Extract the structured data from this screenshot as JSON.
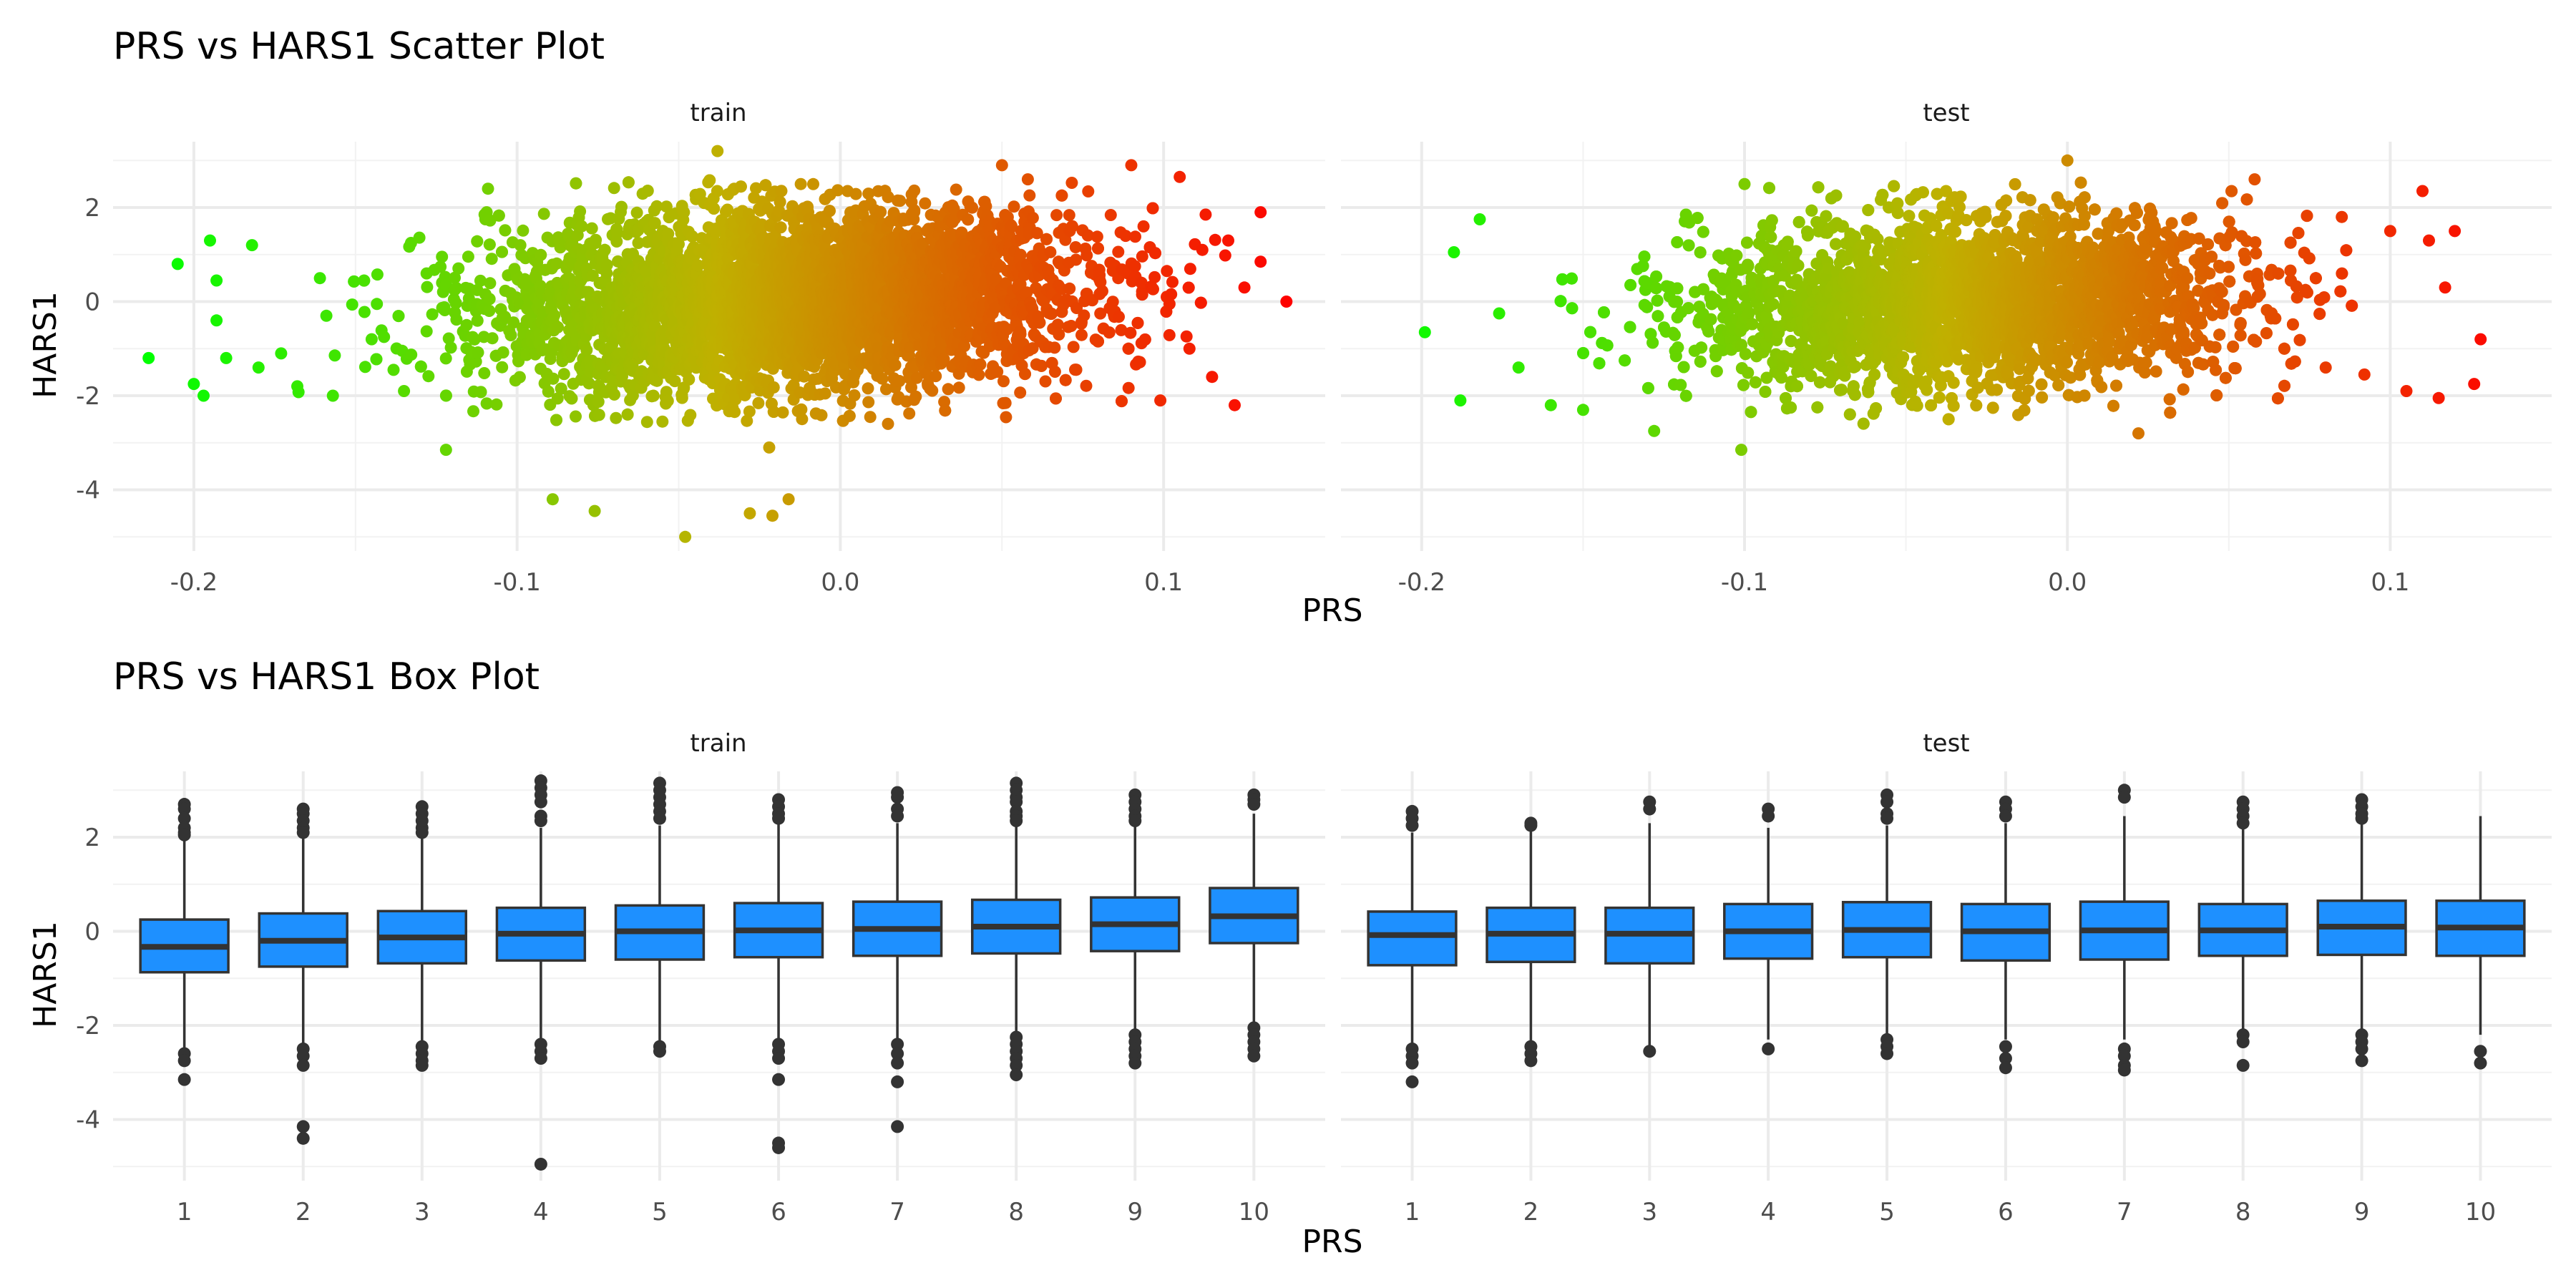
{
  "scatter_title": "PRS vs HARS1 Scatter Plot",
  "box_title": "PRS vs HARS1 Box Plot",
  "scatter_xlabel": "PRS",
  "scatter_ylabel": "HARS1",
  "box_xlabel": "PRS",
  "box_ylabel": "HARS1",
  "panels": [
    "train",
    "test"
  ],
  "colors": {
    "gradient_low": "#00ff00",
    "gradient_mid": "#c0b000",
    "gradient_high": "#ff0000",
    "box_fill": "#1e90ff",
    "box_line": "#333333"
  },
  "chart_data": [
    {
      "type": "scatter",
      "title": "PRS vs HARS1 Scatter Plot",
      "xlabel": "PRS",
      "ylabel": "HARS1",
      "facets": [
        "train",
        "test"
      ],
      "xlim": [
        -0.225,
        0.15
      ],
      "ylim": [
        -5.3,
        3.4
      ],
      "x_ticks": [
        -0.2,
        -0.1,
        0.0,
        0.1
      ],
      "x_tick_labels": [
        "-0.2",
        "-0.1",
        "0.0",
        "0.1"
      ],
      "y_ticks": [
        -4,
        -2,
        0,
        2
      ],
      "y_tick_labels": [
        "-4",
        "-2",
        "0",
        "2"
      ],
      "grid": true,
      "color_by": "x",
      "series": [
        {
          "facet": "train",
          "bulk": {
            "x_mean": -0.015,
            "x_sd": 0.045,
            "x_range": [
              -0.17,
              0.12
            ],
            "y_mean": 0.0,
            "y_sd": 0.95,
            "slope": 3.0
          },
          "points": [
            [
              -0.214,
              -1.2
            ],
            [
              -0.205,
              0.8
            ],
            [
              -0.2,
              -1.75
            ],
            [
              -0.197,
              -2.0
            ],
            [
              -0.195,
              1.3
            ],
            [
              -0.193,
              0.45
            ],
            [
              -0.193,
              -0.4
            ],
            [
              -0.19,
              -1.2
            ],
            [
              -0.182,
              1.2
            ],
            [
              -0.18,
              -1.4
            ],
            [
              -0.173,
              -1.1
            ],
            [
              -0.168,
              -1.8
            ],
            [
              -0.161,
              0.5
            ],
            [
              -0.159,
              -0.3
            ],
            [
              -0.157,
              -2.0
            ],
            [
              -0.145,
              -0.8
            ],
            [
              -0.135,
              -1.9
            ],
            [
              -0.128,
              0.6
            ],
            [
              -0.122,
              -3.15
            ],
            [
              -0.089,
              -4.2
            ],
            [
              -0.076,
              -4.45
            ],
            [
              -0.048,
              -5.0
            ],
            [
              -0.038,
              3.2
            ],
            [
              -0.028,
              -4.5
            ],
            [
              -0.021,
              -4.55
            ],
            [
              -0.016,
              -4.2
            ],
            [
              -0.022,
              -3.1
            ],
            [
              -0.109,
              2.4
            ],
            [
              0.05,
              2.9
            ],
            [
              0.058,
              2.6
            ],
            [
              0.09,
              2.9
            ],
            [
              0.099,
              -2.1
            ],
            [
              0.105,
              2.65
            ],
            [
              0.113,
              1.85
            ],
            [
              0.115,
              -1.6
            ],
            [
              0.12,
              1.3
            ],
            [
              0.122,
              -2.2
            ],
            [
              0.125,
              0.3
            ],
            [
              0.13,
              1.9
            ],
            [
              0.13,
              0.85
            ],
            [
              0.138,
              0.0
            ],
            [
              0.108,
              -1.0
            ],
            [
              0.112,
              1.1
            ]
          ]
        },
        {
          "facet": "test",
          "bulk": {
            "x_mean": -0.03,
            "x_sd": 0.042,
            "x_range": [
              -0.16,
              0.095
            ],
            "y_mean": 0.0,
            "y_sd": 0.9,
            "slope": 2.5
          },
          "points": [
            [
              -0.199,
              -0.65
            ],
            [
              -0.19,
              1.05
            ],
            [
              -0.188,
              -2.1
            ],
            [
              -0.182,
              1.75
            ],
            [
              -0.176,
              -0.25
            ],
            [
              -0.17,
              -1.4
            ],
            [
              -0.16,
              -2.2
            ],
            [
              -0.15,
              -2.3
            ],
            [
              -0.128,
              -2.75
            ],
            [
              -0.101,
              -3.15
            ],
            [
              -0.1,
              2.5
            ],
            [
              0.0,
              3.0
            ],
            [
              0.022,
              -2.8
            ],
            [
              0.058,
              2.6
            ],
            [
              0.08,
              -1.4
            ],
            [
              0.085,
              1.8
            ],
            [
              0.092,
              -1.55
            ],
            [
              0.1,
              1.5
            ],
            [
              0.105,
              -1.9
            ],
            [
              0.11,
              2.35
            ],
            [
              0.115,
              -2.05
            ],
            [
              0.117,
              0.3
            ],
            [
              0.12,
              1.5
            ],
            [
              0.128,
              -0.8
            ],
            [
              0.126,
              -1.75
            ],
            [
              0.112,
              1.3
            ]
          ]
        }
      ]
    },
    {
      "type": "box",
      "title": "PRS vs HARS1 Box Plot",
      "xlabel": "PRS",
      "ylabel": "HARS1",
      "facets": [
        "train",
        "test"
      ],
      "categories": [
        "1",
        "2",
        "3",
        "4",
        "5",
        "6",
        "7",
        "8",
        "9",
        "10"
      ],
      "ylim": [
        -5.3,
        3.4
      ],
      "y_ticks": [
        -4,
        -2,
        0,
        2
      ],
      "y_tick_labels": [
        "-4",
        "-2",
        "0",
        "2"
      ],
      "grid": true,
      "series": [
        {
          "facet": "train",
          "boxes": [
            {
              "q1": -0.87,
              "median": -0.33,
              "q3": 0.25,
              "whisker_low": -2.55,
              "whisker_high": 1.95,
              "outliers": [
                2.7,
                2.6,
                2.4,
                2.2,
                2.1,
                2.05,
                -2.6,
                -2.75,
                -3.15
              ]
            },
            {
              "q1": -0.75,
              "median": -0.2,
              "q3": 0.38,
              "whisker_low": -2.45,
              "whisker_high": 2.05,
              "outliers": [
                2.6,
                2.5,
                2.35,
                2.2,
                2.1,
                -2.5,
                -2.65,
                -2.85,
                -4.15,
                -4.4
              ]
            },
            {
              "q1": -0.68,
              "median": -0.13,
              "q3": 0.43,
              "whisker_low": -2.35,
              "whisker_high": 2.05,
              "outliers": [
                2.65,
                2.5,
                2.35,
                2.2,
                2.1,
                -2.45,
                -2.6,
                -2.75,
                -2.85
              ]
            },
            {
              "q1": -0.62,
              "median": -0.05,
              "q3": 0.5,
              "whisker_low": -2.3,
              "whisker_high": 2.2,
              "outliers": [
                3.2,
                3.05,
                2.9,
                2.75,
                2.45,
                2.35,
                -2.4,
                -2.55,
                -2.7,
                -4.95
              ]
            },
            {
              "q1": -0.6,
              "median": 0.0,
              "q3": 0.55,
              "whisker_low": -2.4,
              "whisker_high": 2.25,
              "outliers": [
                3.15,
                3.0,
                2.85,
                2.7,
                2.55,
                2.4,
                -2.45,
                -2.55
              ]
            },
            {
              "q1": -0.55,
              "median": 0.02,
              "q3": 0.6,
              "whisker_low": -2.3,
              "whisker_high": 2.3,
              "outliers": [
                2.8,
                2.65,
                2.5,
                2.4,
                -2.4,
                -2.55,
                -2.7,
                -3.15,
                -4.5,
                -4.6
              ]
            },
            {
              "q1": -0.52,
              "median": 0.05,
              "q3": 0.63,
              "whisker_low": -2.3,
              "whisker_high": 2.3,
              "outliers": [
                2.95,
                2.85,
                2.6,
                2.45,
                -2.4,
                -2.6,
                -2.8,
                -3.2,
                -4.15
              ]
            },
            {
              "q1": -0.47,
              "median": 0.1,
              "q3": 0.67,
              "whisker_low": -2.2,
              "whisker_high": 2.3,
              "outliers": [
                3.15,
                3.0,
                2.85,
                2.75,
                2.55,
                2.45,
                2.35,
                -2.25,
                -2.4,
                -2.55,
                -2.7,
                -2.85,
                -3.05
              ]
            },
            {
              "q1": -0.42,
              "median": 0.15,
              "q3": 0.72,
              "whisker_low": -2.15,
              "whisker_high": 2.3,
              "outliers": [
                2.9,
                2.75,
                2.6,
                2.45,
                2.35,
                -2.2,
                -2.35,
                -2.5,
                -2.65,
                -2.8
              ]
            },
            {
              "q1": -0.25,
              "median": 0.32,
              "q3": 0.92,
              "whisker_low": -2.0,
              "whisker_high": 2.5,
              "outliers": [
                2.9,
                2.8,
                2.7,
                -2.05,
                -2.2,
                -2.35,
                -2.5,
                -2.65
              ]
            }
          ]
        },
        {
          "facet": "test",
          "boxes": [
            {
              "q1": -0.72,
              "median": -0.08,
              "q3": 0.42,
              "whisker_low": -2.4,
              "whisker_high": 2.1,
              "outliers": [
                2.55,
                2.4,
                2.25,
                -2.5,
                -2.65,
                -2.8,
                -3.2
              ]
            },
            {
              "q1": -0.65,
              "median": -0.05,
              "q3": 0.5,
              "whisker_low": -2.35,
              "whisker_high": 2.2,
              "outliers": [
                2.3,
                2.25,
                -2.45,
                -2.6,
                -2.75
              ]
            },
            {
              "q1": -0.68,
              "median": -0.05,
              "q3": 0.5,
              "whisker_low": -2.45,
              "whisker_high": 2.3,
              "outliers": [
                2.75,
                2.6,
                -2.55
              ]
            },
            {
              "q1": -0.58,
              "median": 0.0,
              "q3": 0.58,
              "whisker_low": -2.3,
              "whisker_high": 2.2,
              "outliers": [
                2.6,
                2.45,
                -2.5
              ]
            },
            {
              "q1": -0.55,
              "median": 0.03,
              "q3": 0.62,
              "whisker_low": -2.2,
              "whisker_high": 2.25,
              "outliers": [
                2.9,
                2.75,
                2.5,
                2.4,
                -2.3,
                -2.45,
                -2.6
              ]
            },
            {
              "q1": -0.62,
              "median": 0.0,
              "q3": 0.58,
              "whisker_low": -2.3,
              "whisker_high": 2.3,
              "outliers": [
                2.75,
                2.6,
                2.45,
                -2.45,
                -2.7,
                -2.9
              ]
            },
            {
              "q1": -0.6,
              "median": 0.02,
              "q3": 0.63,
              "whisker_low": -2.3,
              "whisker_high": 2.45,
              "outliers": [
                3.0,
                2.85,
                -2.5,
                -2.65,
                -2.85,
                -2.95
              ]
            },
            {
              "q1": -0.52,
              "median": 0.02,
              "q3": 0.58,
              "whisker_low": -2.1,
              "whisker_high": 2.2,
              "outliers": [
                2.75,
                2.6,
                2.45,
                2.3,
                -2.2,
                -2.35,
                -2.85
              ]
            },
            {
              "q1": -0.5,
              "median": 0.1,
              "q3": 0.65,
              "whisker_low": -2.1,
              "whisker_high": 2.3,
              "outliers": [
                2.8,
                2.65,
                2.5,
                2.4,
                -2.2,
                -2.35,
                -2.5,
                -2.75
              ]
            },
            {
              "q1": -0.52,
              "median": 0.08,
              "q3": 0.65,
              "whisker_low": -2.2,
              "whisker_high": 2.45,
              "outliers": [
                -2.55,
                -2.8
              ]
            }
          ]
        }
      ]
    }
  ]
}
